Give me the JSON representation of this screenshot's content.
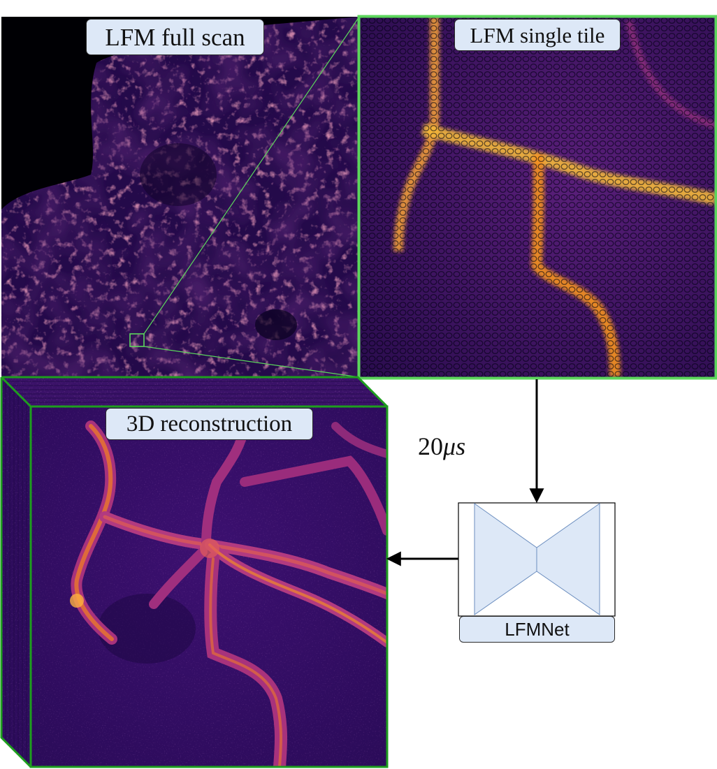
{
  "panels": {
    "full_scan_label": "LFM full scan",
    "single_tile_label": "LFM single tile",
    "reconstruction_label": "3D reconstruction"
  },
  "pipeline": {
    "timing_number": "20",
    "timing_unit": "μs",
    "network_label": "LFMNet"
  },
  "colors": {
    "highlight_green": "#5cd65c",
    "cube_green": "#1e9e1e",
    "network_fill": "#dde8f7",
    "tissue_background": "#2d0d5a",
    "vessel_hot": "#fca636"
  }
}
